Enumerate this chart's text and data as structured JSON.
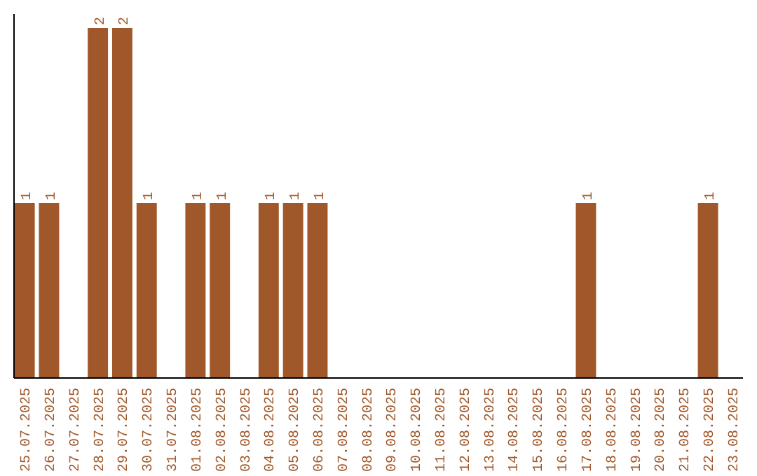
{
  "chart_data": {
    "type": "bar",
    "categories": [
      "25.07.2025",
      "26.07.2025",
      "27.07.2025",
      "28.07.2025",
      "29.07.2025",
      "30.07.2025",
      "31.07.2025",
      "01.08.2025",
      "02.08.2025",
      "03.08.2025",
      "04.08.2025",
      "05.08.2025",
      "06.08.2025",
      "07.08.2025",
      "08.08.2025",
      "09.08.2025",
      "10.08.2025",
      "11.08.2025",
      "12.08.2025",
      "13.08.2025",
      "14.08.2025",
      "15.08.2025",
      "16.08.2025",
      "17.08.2025",
      "18.08.2025",
      "19.08.2025",
      "20.08.2025",
      "21.08.2025",
      "22.08.2025",
      "23.08.2025"
    ],
    "values": [
      1,
      1,
      0,
      2,
      2,
      1,
      0,
      1,
      1,
      0,
      1,
      1,
      1,
      0,
      0,
      0,
      0,
      0,
      0,
      0,
      0,
      0,
      0,
      1,
      0,
      0,
      0,
      0,
      1,
      0
    ],
    "value_labels": [
      "1",
      "1",
      null,
      "2",
      "2",
      "1",
      null,
      "1",
      "1",
      null,
      "1",
      "1",
      "1",
      null,
      null,
      null,
      null,
      null,
      null,
      null,
      null,
      null,
      null,
      "1",
      null,
      null,
      null,
      null,
      "1",
      null
    ],
    "color": "#a0582a",
    "ylim": [
      0,
      2.08
    ],
    "tick_labels": "x",
    "grid": false
  }
}
